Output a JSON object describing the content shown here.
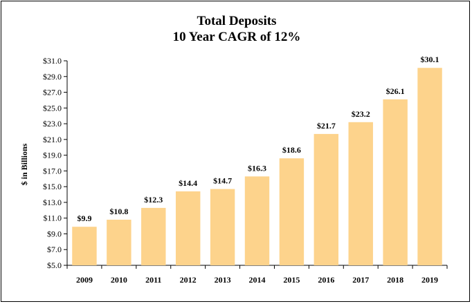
{
  "chart_data": {
    "type": "bar",
    "title": "Total Deposits",
    "subtitle": "10 Year CAGR of 12%",
    "ylabel": "$ in Billions",
    "xlabel": "",
    "categories": [
      "2009",
      "2010",
      "2011",
      "2012",
      "2013",
      "2014",
      "2015",
      "2016",
      "2017",
      "2018",
      "2019"
    ],
    "values": [
      9.9,
      10.8,
      12.3,
      14.4,
      14.7,
      16.3,
      18.6,
      21.7,
      23.2,
      26.1,
      30.1
    ],
    "data_labels": [
      "$9.9",
      "$10.8",
      "$12.3",
      "$14.4",
      "$14.7",
      "$16.3",
      "$18.6",
      "$21.7",
      "$23.2",
      "$26.1",
      "$30.1"
    ],
    "ylim": [
      5.0,
      31.0
    ],
    "yticks": [
      5.0,
      7.0,
      9.0,
      11.0,
      13.0,
      15.0,
      17.0,
      19.0,
      21.0,
      23.0,
      25.0,
      27.0,
      29.0,
      31.0
    ],
    "ytick_labels": [
      "$5.0",
      "$7.0",
      "$9.0",
      "$11.0",
      "$13.0",
      "$15.0",
      "$17.0",
      "$19.0",
      "$21.0",
      "$23.0",
      "$25.0",
      "$27.0",
      "$29.0",
      "$31.0"
    ],
    "grid": false,
    "legend": "none",
    "bar_color": "#FDD38C"
  }
}
